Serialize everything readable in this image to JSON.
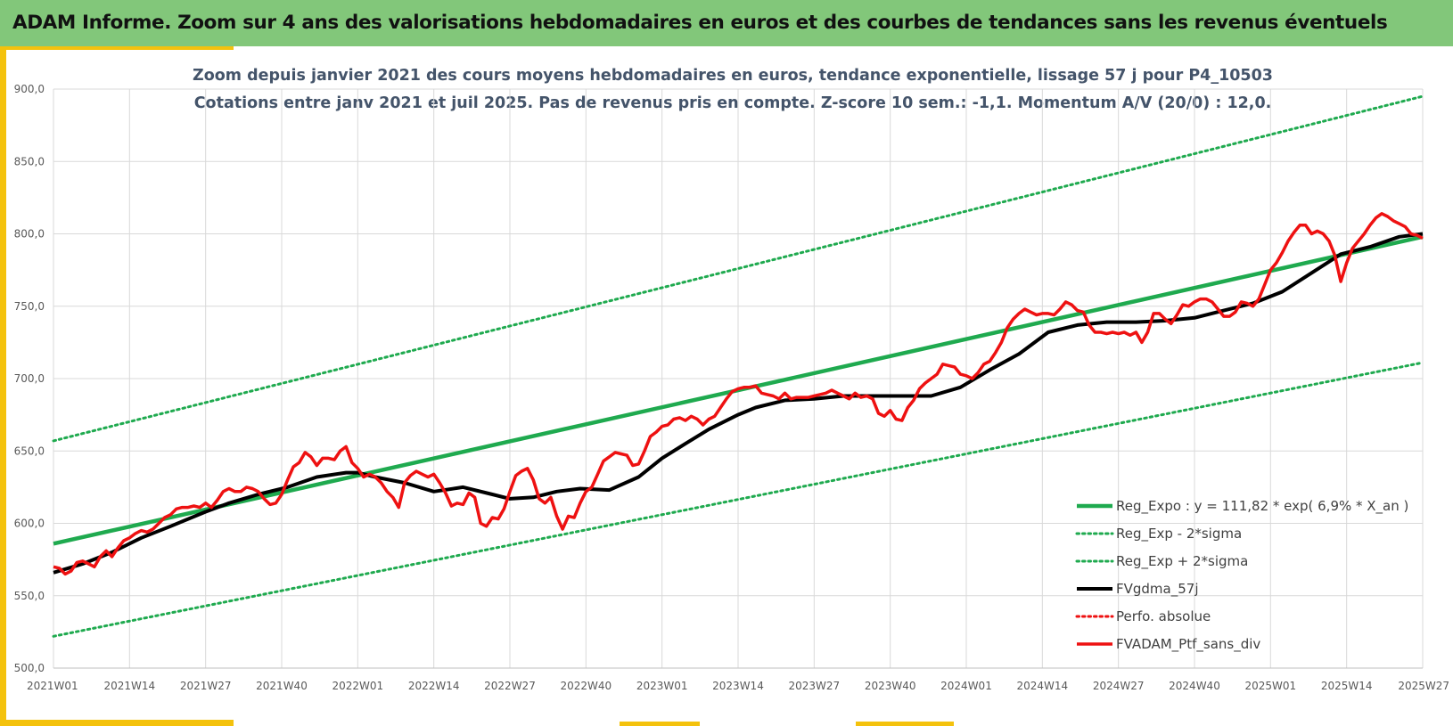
{
  "header": {
    "title": "ADAM Informe. Zoom sur 4 ans des valorisations hebdomadaires en euros et des courbes de tendances sans les revenus éventuels"
  },
  "colors": {
    "header_bg": "#82c77a",
    "frame_yellow": "#f4c20d",
    "green": "#1faa4f",
    "black": "#000000",
    "red": "#ee1111"
  },
  "chart_data": {
    "type": "line",
    "title": "Zoom depuis janvier 2021 des cours moyens hebdomadaires  en euros, tendance exponentielle, lissage 57 j pour P4_10503",
    "subtitle": "Cotations entre janv 2021 et juil 2025. Pas de revenus pris en compte. Z-score 10 sem.: -1,1. Momentum A/V (20/0) : 12,0.",
    "x_tick_labels": [
      "2021W01",
      "2021W14",
      "2021W27",
      "2021W40",
      "2022W01",
      "2022W14",
      "2022W27",
      "2022W40",
      "2023W01",
      "2023W14",
      "2023W27",
      "2023W40",
      "2024W01",
      "2024W14",
      "2024W27",
      "2024W40",
      "2025W01",
      "2025W14",
      "2025W27"
    ],
    "y_tick_labels": [
      "500,0",
      "550,0",
      "600,0",
      "650,0",
      "700,0",
      "750,0",
      "800,0",
      "850,0",
      "900,0"
    ],
    "ylim": [
      500,
      900
    ],
    "x_range_weeks": [
      0,
      234
    ],
    "grid": true,
    "legend_position": "bottom-right",
    "series": [
      {
        "name": "Reg_Expo : y = 111,82 * exp( 6,9% *  X_an )",
        "style": "solid",
        "color": "#1faa4f",
        "x": [
          0,
          234
        ],
        "y": [
          586,
          798
        ]
      },
      {
        "name": "Reg_Exp - 2*sigma",
        "style": "dotted",
        "color": "#1faa4f",
        "x": [
          0,
          234
        ],
        "y": [
          522,
          711
        ]
      },
      {
        "name": "Reg_Exp + 2*sigma",
        "style": "dotted",
        "color": "#1faa4f",
        "x": [
          0,
          234
        ],
        "y": [
          657,
          895
        ]
      },
      {
        "name": "FVgdma_57j",
        "style": "solid",
        "color": "#000000",
        "x": [
          0,
          5,
          10,
          15,
          20,
          26,
          30,
          35,
          40,
          45,
          50,
          52,
          55,
          60,
          65,
          70,
          75,
          78,
          82,
          86,
          90,
          95,
          100,
          104,
          108,
          112,
          117,
          120,
          125,
          130,
          135,
          140,
          145,
          150,
          155,
          160,
          165,
          170,
          175,
          180,
          185,
          190,
          195,
          200,
          205,
          210,
          215,
          220,
          225,
          230,
          234
        ],
        "y": [
          566,
          572,
          580,
          590,
          598,
          608,
          614,
          620,
          625,
          632,
          635,
          635,
          632,
          628,
          622,
          625,
          620,
          617,
          618,
          622,
          624,
          623,
          632,
          645,
          655,
          665,
          675,
          680,
          685,
          686,
          688,
          688,
          688,
          688,
          694,
          706,
          717,
          732,
          737,
          739,
          739,
          740,
          742,
          747,
          752,
          760,
          773,
          786,
          791,
          798,
          800
        ]
      },
      {
        "name": "Perfo. absolue",
        "style": "dotted",
        "color": "#ee1111",
        "x": [],
        "y": []
      },
      {
        "name": "FVADAM_Ptf_sans_div",
        "style": "solid",
        "color": "#ee1111",
        "x": [
          0,
          1,
          2,
          3,
          4,
          5,
          6,
          7,
          8,
          9,
          10,
          11,
          12,
          13,
          14,
          15,
          16,
          17,
          18,
          19,
          20,
          21,
          22,
          23,
          24,
          25,
          26,
          27,
          28,
          29,
          30,
          31,
          32,
          33,
          34,
          35,
          36,
          37,
          38,
          39,
          40,
          41,
          42,
          43,
          44,
          45,
          46,
          47,
          48,
          49,
          50,
          51,
          52,
          53,
          54,
          55,
          56,
          57,
          58,
          59,
          60,
          61,
          62,
          63,
          64,
          65,
          66,
          67,
          68,
          69,
          70,
          71,
          72,
          73,
          74,
          75,
          76,
          77,
          78,
          79,
          80,
          81,
          82,
          83,
          84,
          85,
          86,
          87,
          88,
          89,
          90,
          91,
          92,
          93,
          94,
          95,
          96,
          97,
          98,
          99,
          100,
          101,
          102,
          103,
          104,
          105,
          106,
          107,
          108,
          109,
          110,
          111,
          112,
          113,
          114,
          115,
          116,
          117,
          118,
          119,
          120,
          121,
          122,
          123,
          124,
          125,
          126,
          127,
          128,
          129,
          130,
          131,
          132,
          133,
          134,
          135,
          136,
          137,
          138,
          139,
          140,
          141,
          142,
          143,
          144,
          145,
          146,
          147,
          148,
          149,
          150,
          151,
          152,
          153,
          154,
          155,
          156,
          157,
          158,
          159,
          160,
          161,
          162,
          163,
          164,
          165,
          166,
          167,
          168,
          169,
          170,
          171,
          172,
          173,
          174,
          175,
          176,
          177,
          178,
          179,
          180,
          181,
          182,
          183,
          184,
          185,
          186,
          187,
          188,
          189,
          190,
          191,
          192,
          193,
          194,
          195,
          196,
          197,
          198,
          199,
          200,
          201,
          202,
          203,
          204,
          205,
          206,
          207,
          208,
          209,
          210,
          211,
          212,
          213,
          214,
          215,
          216,
          217,
          218,
          219,
          220,
          221,
          222,
          223,
          224,
          225,
          226,
          227,
          228,
          229,
          230,
          231,
          232,
          233,
          234
        ],
        "y": [
          570,
          569,
          565,
          567,
          573,
          574,
          572,
          570,
          577,
          581,
          577,
          583,
          588,
          590,
          593,
          595,
          594,
          596,
          600,
          604,
          606,
          610,
          611,
          611,
          612,
          611,
          614,
          611,
          616,
          622,
          624,
          622,
          622,
          625,
          624,
          622,
          617,
          613,
          614,
          620,
          630,
          639,
          642,
          649,
          646,
          640,
          645,
          645,
          644,
          650,
          653,
          642,
          638,
          632,
          634,
          632,
          628,
          622,
          618,
          611,
          628,
          633,
          636,
          634,
          632,
          634,
          628,
          621,
          612,
          614,
          613,
          621,
          618,
          600,
          598,
          604,
          603,
          610,
          622,
          633,
          636,
          638,
          630,
          617,
          614,
          618,
          605,
          596,
          605,
          604,
          614,
          622,
          625,
          634,
          643,
          646,
          649,
          648,
          647,
          640,
          641,
          650,
          660,
          663,
          667,
          668,
          672,
          673,
          671,
          674,
          672,
          668,
          672,
          674,
          680,
          686,
          691,
          693,
          694,
          694,
          695,
          690,
          689,
          688,
          686,
          690,
          686,
          687,
          687,
          687,
          688,
          689,
          690,
          692,
          690,
          688,
          686,
          690,
          687,
          688,
          686,
          676,
          674,
          678,
          672,
          671,
          680,
          685,
          693,
          697,
          700,
          703,
          710,
          709,
          708,
          703,
          702,
          700,
          704,
          710,
          712,
          718,
          725,
          735,
          741,
          745,
          748,
          746,
          744,
          745,
          745,
          744,
          748,
          753,
          751,
          747,
          746,
          737,
          732,
          732,
          731,
          732,
          731,
          732,
          730,
          732,
          725,
          732,
          745,
          745,
          741,
          738,
          744,
          751,
          750,
          753,
          755,
          755,
          753,
          748,
          743,
          743,
          746,
          753,
          752,
          750,
          755,
          765,
          775,
          780,
          787,
          795,
          801,
          806,
          806,
          800,
          802,
          800,
          795,
          785,
          767,
          780,
          790,
          795,
          800,
          806,
          811,
          814,
          812,
          809,
          807,
          805,
          800,
          799,
          797
        ]
      }
    ]
  }
}
